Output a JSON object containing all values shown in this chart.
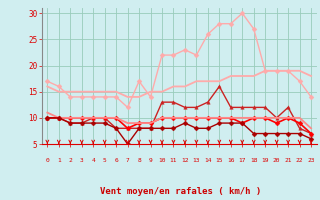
{
  "x": [
    0,
    1,
    2,
    3,
    4,
    5,
    6,
    7,
    8,
    9,
    10,
    11,
    12,
    13,
    14,
    15,
    16,
    17,
    18,
    19,
    20,
    21,
    22,
    23
  ],
  "series": [
    {
      "name": "rafales_max",
      "color": "#ffaaaa",
      "lw": 1.0,
      "marker": "D",
      "ms": 2.5,
      "values": [
        17,
        16,
        14,
        14,
        14,
        14,
        14,
        12,
        17,
        14,
        22,
        22,
        23,
        22,
        26,
        28,
        28,
        30,
        27,
        19,
        19,
        19,
        17,
        14
      ]
    },
    {
      "name": "moy_max",
      "color": "#ffaaaa",
      "lw": 1.3,
      "marker": null,
      "ms": 0,
      "values": [
        16,
        15,
        15,
        15,
        15,
        15,
        15,
        14,
        14,
        15,
        15,
        16,
        16,
        17,
        17,
        17,
        18,
        18,
        18,
        19,
        19,
        19,
        19,
        18
      ]
    },
    {
      "name": "rafales_inst",
      "color": "#cc2222",
      "lw": 1.0,
      "marker": "^",
      "ms": 2.5,
      "values": [
        10,
        10,
        9,
        9,
        10,
        10,
        8,
        8,
        8,
        8,
        13,
        13,
        12,
        12,
        13,
        16,
        12,
        12,
        12,
        12,
        10,
        12,
        8,
        7
      ]
    },
    {
      "name": "vent_moyen",
      "color": "#ff0000",
      "lw": 1.2,
      "marker": "D",
      "ms": 2.5,
      "values": [
        10,
        10,
        10,
        10,
        10,
        10,
        10,
        8,
        9,
        9,
        10,
        10,
        10,
        10,
        10,
        10,
        10,
        9,
        10,
        10,
        9,
        10,
        9,
        7
      ]
    },
    {
      "name": "moy_min",
      "color": "#ff8888",
      "lw": 1.3,
      "marker": null,
      "ms": 0,
      "values": [
        11,
        10,
        10,
        10,
        10,
        10,
        10,
        9,
        9,
        9,
        10,
        10,
        10,
        10,
        10,
        10,
        10,
        10,
        10,
        10,
        10,
        10,
        10,
        8
      ]
    },
    {
      "name": "vent_min",
      "color": "#aa0000",
      "lw": 1.0,
      "marker": "D",
      "ms": 2.5,
      "values": [
        10,
        10,
        9,
        9,
        9,
        9,
        8,
        5,
        8,
        8,
        8,
        8,
        9,
        8,
        8,
        9,
        9,
        9,
        7,
        7,
        7,
        7,
        7,
        6
      ]
    }
  ],
  "xlabel": "Vent moyen/en rafales ( km/h )",
  "xlim_min": -0.5,
  "xlim_max": 23.5,
  "ylim_min": 5,
  "ylim_max": 31,
  "yticks": [
    5,
    10,
    15,
    20,
    25,
    30
  ],
  "xticks": [
    0,
    1,
    2,
    3,
    4,
    5,
    6,
    7,
    8,
    9,
    10,
    11,
    12,
    13,
    14,
    15,
    16,
    17,
    18,
    19,
    20,
    21,
    22,
    23
  ],
  "bg_color": "#d0eef0",
  "grid_color": "#99ccbb",
  "tick_color": "#dd0000",
  "xlabel_color": "#cc0000",
  "arrow_color": "#dd0000",
  "spine_color": "#888888"
}
